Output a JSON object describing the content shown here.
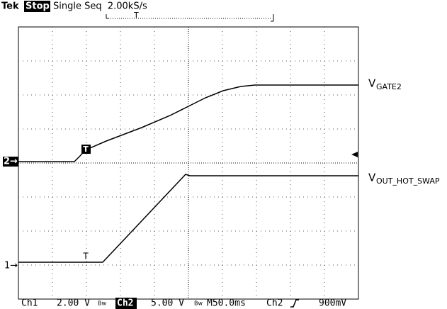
{
  "header": {
    "brand": "Tek",
    "state": "Stop:",
    "mode": "Single Seq  2.00kS/s"
  },
  "trigger_marker": "T",
  "channels": [
    {
      "marker": "2→",
      "label": "V",
      "subscript": "GATE2"
    },
    {
      "marker": "1→",
      "label": "V",
      "subscript": "OUT_HOT_SWAP"
    }
  ],
  "status_bar": {
    "ch1": "Ch1",
    "ch1_scale": "2.00 V",
    "ch1_bw": "Bw",
    "ch2": "Ch2",
    "ch2_scale": "5.00 V",
    "ch2_bw": "Bw",
    "timebase": "M50.0ms",
    "trigger_source": "Ch2",
    "trigger_level": "900mV"
  }
}
